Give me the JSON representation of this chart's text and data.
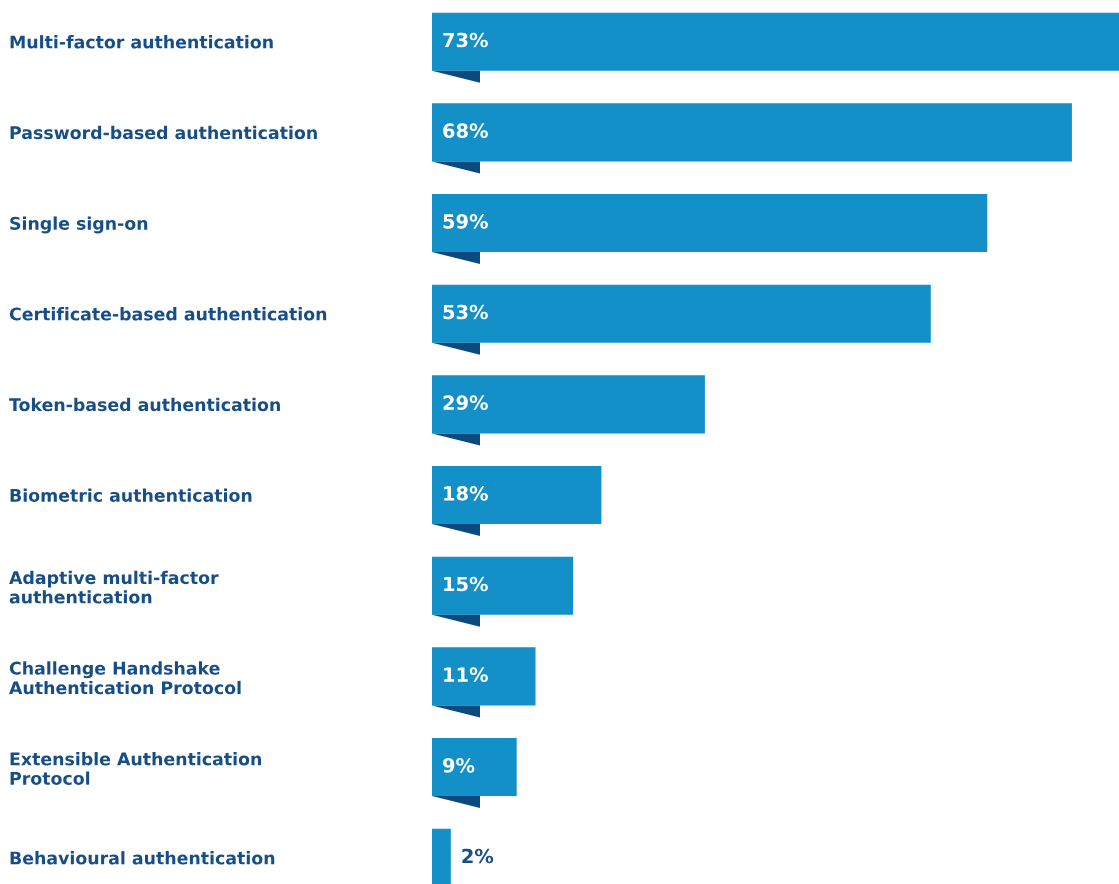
{
  "chart_data": {
    "type": "bar",
    "orientation": "horizontal",
    "categories": [
      "Multi-factor authentication",
      "Password-based authentication",
      "Single sign-on",
      "Certificate-based authentication",
      "Token-based authentication",
      "Biometric authentication",
      "Adaptive multi-factor\nauthentication",
      "Challenge Handshake\nAuthentication Protocol",
      "Extensible Authentication\nProtocol",
      "Behavioural authentication"
    ],
    "values": [
      73,
      68,
      59,
      53,
      29,
      18,
      15,
      11,
      9,
      2
    ],
    "value_labels": [
      "73%",
      "68%",
      "59%",
      "53%",
      "29%",
      "18%",
      "15%",
      "11%",
      "9%",
      "2%"
    ],
    "color": "#1490c8",
    "xlim": [
      0,
      73
    ],
    "tick_labels": "y",
    "grid": false,
    "legend": false
  }
}
